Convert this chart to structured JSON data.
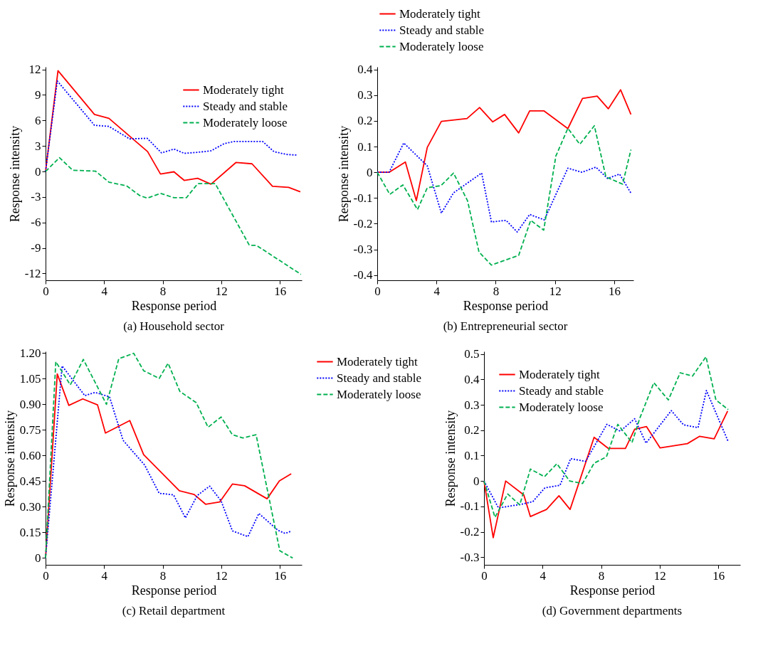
{
  "chart_data": [
    {
      "type": "line",
      "title": "(a) Household sector",
      "xlabel": "Response period",
      "ylabel": "Response intensity",
      "xlim": [
        0,
        17.5
      ],
      "xticks": [
        0,
        4,
        8,
        12,
        16
      ],
      "ylim": [
        -12.8,
        12.3
      ],
      "yticks": [
        12,
        9,
        6,
        3,
        0,
        -3,
        -6,
        -9,
        -12
      ],
      "grid": false,
      "legend": "top right",
      "series": [
        {
          "name": "Moderately tight",
          "color": "#ff0000",
          "line_style": "solid",
          "x": [
            0,
            0.85,
            3.34,
            4.33,
            6.97,
            7.85,
            8.77,
            9.47,
            10.39,
            11.3,
            13.0,
            14.1,
            15.5,
            16.6,
            17.4
          ],
          "values": [
            0,
            11.85,
            6.7,
            6.25,
            2.33,
            -0.3,
            -0.04,
            -1.05,
            -0.8,
            -1.5,
            1.05,
            0.9,
            -1.74,
            -1.87,
            -2.4
          ]
        },
        {
          "name": "Steady and stable",
          "color": "#0000ff",
          "line_style": "dotted",
          "x": [
            0,
            0.8,
            3.34,
            4.33,
            5.74,
            6.94,
            7.92,
            8.77,
            9.47,
            10.39,
            11.3,
            12.2,
            12.86,
            14.83,
            15.6,
            16.45,
            17.2
          ],
          "values": [
            0,
            10.65,
            5.43,
            5.3,
            3.83,
            3.9,
            2.18,
            2.63,
            2.13,
            2.25,
            2.43,
            3.27,
            3.52,
            3.52,
            2.33,
            2.0,
            1.92
          ]
        },
        {
          "name": "Moderately loose",
          "color": "#00b050",
          "line_style": "dashed",
          "x": [
            0,
            0.95,
            1.86,
            3.41,
            4.33,
            5.53,
            6.44,
            6.94,
            7.85,
            8.77,
            9.62,
            10.39,
            11.59,
            13.92,
            14.4,
            17.44
          ],
          "values": [
            0,
            1.62,
            0.14,
            0.04,
            -1.26,
            -1.69,
            -2.84,
            -3.14,
            -2.58,
            -3.09,
            -3.09,
            -1.44,
            -1.44,
            -8.69,
            -8.69,
            -12.1
          ]
        }
      ]
    },
    {
      "type": "line",
      "title": "(b) Entrepreneurial sector",
      "xlabel": "Response period",
      "ylabel": "Response intensity",
      "xlim": [
        0,
        17.3
      ],
      "xticks": [
        0,
        4,
        8,
        12,
        16
      ],
      "ylim": [
        -0.42,
        0.41
      ],
      "yticks": [
        0.4,
        0.3,
        0.2,
        0.1,
        0,
        -0.1,
        -0.2,
        -0.3,
        -0.4
      ],
      "grid": false,
      "legend": "top",
      "series": [
        {
          "name": "Moderately tight",
          "color": "#ff0000",
          "line_style": "solid",
          "x": [
            0,
            0.8,
            1.9,
            2.64,
            3.38,
            4.33,
            6.06,
            6.91,
            7.8,
            8.6,
            9.55,
            10.29,
            11.25,
            12.87,
            13.86,
            14.85,
            15.6,
            16.43,
            17.13
          ],
          "values": [
            0,
            0.0,
            0.04,
            -0.11,
            0.097,
            0.198,
            0.209,
            0.252,
            0.196,
            0.225,
            0.153,
            0.239,
            0.239,
            0.17,
            0.287,
            0.296,
            0.247,
            0.321,
            0.225
          ]
        },
        {
          "name": "Steady and stable",
          "color": "#0000ff",
          "line_style": "dotted",
          "x": [
            0,
            0.8,
            1.79,
            3.38,
            4.33,
            5.15,
            7.05,
            7.71,
            8.7,
            9.45,
            10.29,
            11.28,
            12.87,
            13.82,
            14.76,
            15.55,
            16.36,
            17.13
          ],
          "values": [
            0,
            0,
            0.114,
            0.025,
            -0.159,
            -0.08,
            -0.003,
            -0.193,
            -0.187,
            -0.232,
            -0.164,
            -0.185,
            0.016,
            0,
            0.02,
            -0.024,
            -0.007,
            -0.081
          ]
        },
        {
          "name": "Moderately loose",
          "color": "#00b050",
          "line_style": "dashed",
          "x": [
            0,
            0.85,
            1.73,
            2.72,
            3.38,
            4.3,
            5.15,
            6.1,
            6.87,
            7.71,
            9.55,
            10.36,
            11.24,
            12.06,
            12.87,
            13.68,
            14.66,
            15.44,
            16.57,
            17.13
          ],
          "values": [
            0,
            -0.086,
            -0.049,
            -0.145,
            -0.06,
            -0.052,
            -0.003,
            -0.111,
            -0.31,
            -0.361,
            -0.323,
            -0.187,
            -0.225,
            0.063,
            0.171,
            0.109,
            0.181,
            -0.018,
            -0.046,
            0.088
          ]
        }
      ]
    },
    {
      "type": "line",
      "title": "(c) Retail department",
      "xlabel": "Response period",
      "ylabel": "Response intensity",
      "xlim": [
        0,
        17.5
      ],
      "xticks": [
        0,
        4,
        8,
        12,
        16
      ],
      "ylim": [
        -0.04,
        1.21
      ],
      "yticks": [
        {
          "value": 1.2,
          "label": "1.20"
        },
        1.05,
        {
          "value": 0.9,
          "label": "0.90"
        },
        0.75,
        {
          "value": 0.6,
          "label": "0.60"
        },
        0.45,
        {
          "value": 0.3,
          "label": "0.30"
        },
        0.15,
        0
      ],
      "grid": false,
      "legend": "right",
      "series": [
        {
          "name": "Moderately tight",
          "color": "#ff0000",
          "line_style": "solid",
          "x": [
            0,
            0.8,
            1.59,
            2.54,
            3.55,
            4.09,
            5.75,
            6.7,
            9.14,
            10.15,
            10.93,
            11.89,
            12.76,
            13.6,
            15.13,
            15.97,
            16.78
          ],
          "values": [
            0,
            1.078,
            0.894,
            0.932,
            0.897,
            0.732,
            0.805,
            0.605,
            0.394,
            0.372,
            0.315,
            0.328,
            0.433,
            0.423,
            0.347,
            0.452,
            0.493
          ]
        },
        {
          "name": "Steady and stable",
          "color": "#0000ff",
          "line_style": "dotted",
          "x": [
            0,
            1.13,
            2.68,
            3.38,
            4.37,
            5.29,
            6.77,
            7.76,
            8.74,
            9.55,
            10.36,
            11.21,
            11.99,
            12.76,
            13.82,
            14.57,
            15.86,
            16.36,
            16.74
          ],
          "values": [
            0,
            1.125,
            0.951,
            0.97,
            0.944,
            0.69,
            0.544,
            0.379,
            0.37,
            0.235,
            0.366,
            0.421,
            0.334,
            0.159,
            0.125,
            0.261,
            0.163,
            0.144,
            0.156
          ]
        },
        {
          "name": "Moderately loose",
          "color": "#00b050",
          "line_style": "dashed",
          "x": [
            0,
            0.7,
            1.69,
            2.58,
            4.16,
            5.0,
            6.02,
            6.7,
            7.76,
            8.37,
            9.17,
            10.29,
            11.1,
            11.99,
            12.76,
            13.47,
            14.38,
            16.0,
            16.88
          ],
          "values": [
            0,
            1.15,
            1.014,
            1.163,
            0.9,
            1.167,
            1.199,
            1.097,
            1.052,
            1.141,
            0.976,
            0.91,
            0.766,
            0.826,
            0.722,
            0.703,
            0.722,
            0.042,
            0
          ]
        }
      ]
    },
    {
      "type": "line",
      "title": "(d) Government departments",
      "xlabel": "Response period",
      "ylabel": "Response intensity",
      "xlim": [
        0,
        17.5
      ],
      "xticks": [
        0,
        4,
        8,
        12,
        16
      ],
      "ylim": [
        -0.33,
        0.51
      ],
      "yticks": [
        0.5,
        0.4,
        0.3,
        0.2,
        0.1,
        0,
        -0.1,
        -0.2,
        -0.3
      ],
      "grid": false,
      "legend": "top left",
      "series": [
        {
          "name": "Moderately tight",
          "color": "#ff0000",
          "line_style": "solid",
          "x": [
            0,
            0.63,
            1.48,
            2.72,
            3.17,
            4.27,
            5.12,
            5.88,
            7.52,
            8.5,
            9.66,
            10.29,
            11.1,
            12.03,
            13.89,
            14.73,
            15.72,
            16.64
          ],
          "values": [
            0,
            -0.223,
            0,
            -0.055,
            -0.14,
            -0.112,
            -0.058,
            -0.112,
            0.172,
            0.128,
            0.128,
            0.204,
            0.214,
            0.13,
            0.147,
            0.176,
            0.166,
            0.275
          ]
        },
        {
          "name": "Steady and stable",
          "color": "#0000ff",
          "line_style": "dotted",
          "x": [
            0,
            0.99,
            2.61,
            3.34,
            4.16,
            5.19,
            5.92,
            6.94,
            8.39,
            9.31,
            10.29,
            11.07,
            12.79,
            13.63,
            14.62,
            15.19,
            16.68
          ],
          "values": [
            0,
            -0.106,
            -0.091,
            -0.081,
            -0.027,
            -0.017,
            0.088,
            0.077,
            0.223,
            0.196,
            0.245,
            0.149,
            0.277,
            0.221,
            0.21,
            0.356,
            0.155
          ]
        },
        {
          "name": "Moderately loose",
          "color": "#00b050",
          "line_style": "dashed",
          "x": [
            0,
            0.75,
            1.62,
            2.44,
            3.17,
            4.13,
            4.98,
            5.85,
            6.73,
            7.52,
            8.36,
            9.14,
            10.11,
            10.64,
            11.6,
            12.59,
            13.4,
            14.24,
            15.16,
            15.84,
            16.68
          ],
          "values": [
            0,
            -0.143,
            -0.051,
            -0.094,
            0.047,
            0.017,
            0.068,
            0,
            -0.01,
            0.07,
            0.095,
            0.223,
            0.151,
            0.247,
            0.387,
            0.319,
            0.426,
            0.413,
            0.489,
            0.319,
            0.281
          ]
        }
      ]
    }
  ]
}
